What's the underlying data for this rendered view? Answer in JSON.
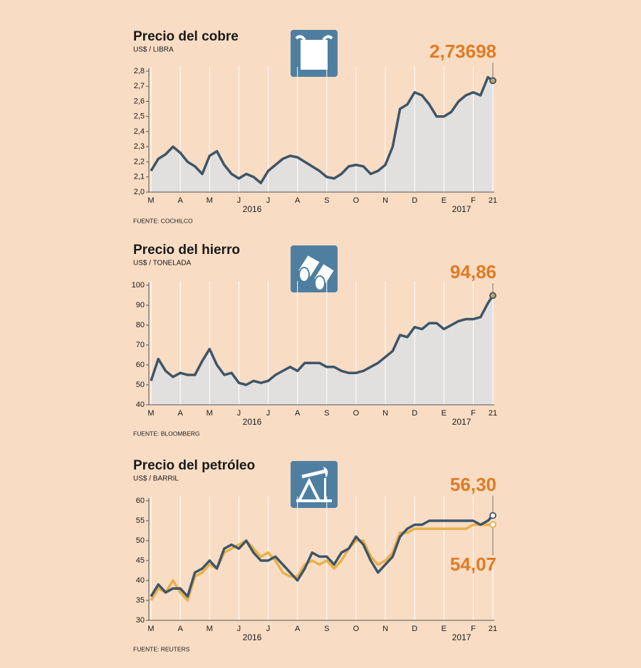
{
  "chart_data": [
    {
      "type": "line",
      "title": "Precio del cobre",
      "subtitle": "US$ / LIBRA",
      "source": "FUENTE: COCHILCO",
      "area": true,
      "grid": true,
      "x": [
        0,
        0.25,
        0.5,
        0.75,
        1,
        1.25,
        1.5,
        1.75,
        2,
        2.25,
        2.5,
        2.75,
        3,
        3.25,
        3.5,
        3.75,
        4,
        4.25,
        4.5,
        4.75,
        5,
        5.25,
        5.5,
        5.75,
        6,
        6.25,
        6.5,
        6.75,
        7,
        7.25,
        7.5,
        7.75,
        8,
        8.25,
        8.5,
        8.75,
        9,
        9.25,
        9.5,
        9.75,
        10,
        10.25,
        10.5,
        10.75,
        11,
        11.25,
        11.5,
        11.67
      ],
      "xlim": [
        0,
        11.67
      ],
      "xticks": [
        {
          "value": 0,
          "label": "M"
        },
        {
          "value": 1,
          "label": "A"
        },
        {
          "value": 2,
          "label": "M"
        },
        {
          "value": 3,
          "label": "J"
        },
        {
          "value": 4,
          "label": "J"
        },
        {
          "value": 5,
          "label": "A"
        },
        {
          "value": 6,
          "label": "S"
        },
        {
          "value": 7,
          "label": "O"
        },
        {
          "value": 8,
          "label": "N"
        },
        {
          "value": 9,
          "label": "D"
        },
        {
          "value": 10,
          "label": "E"
        },
        {
          "value": 11,
          "label": "F"
        },
        {
          "value": 11.67,
          "label": "21"
        }
      ],
      "x_group_labels": [
        "2016",
        "2017"
      ],
      "ylim": [
        2.0,
        2.8
      ],
      "yticks": [
        {
          "value": 2.0,
          "label": "2,0"
        },
        {
          "value": 2.1,
          "label": "2,1"
        },
        {
          "value": 2.2,
          "label": "2,2"
        },
        {
          "value": 2.3,
          "label": "2,3"
        },
        {
          "value": 2.4,
          "label": "2,4"
        },
        {
          "value": 2.5,
          "label": "2,5"
        },
        {
          "value": 2.6,
          "label": "2,6"
        },
        {
          "value": 2.7,
          "label": "2,7"
        },
        {
          "value": 2.8,
          "label": "2,8"
        }
      ],
      "series": [
        {
          "color": "#3e5566",
          "marker_color": "#b8a56e",
          "label_color": "#e07b24",
          "values": [
            2.14,
            2.22,
            2.25,
            2.3,
            2.26,
            2.2,
            2.17,
            2.12,
            2.24,
            2.27,
            2.18,
            2.12,
            2.09,
            2.12,
            2.1,
            2.06,
            2.14,
            2.18,
            2.22,
            2.24,
            2.23,
            2.2,
            2.17,
            2.14,
            2.1,
            2.09,
            2.12,
            2.17,
            2.18,
            2.17,
            2.12,
            2.14,
            2.18,
            2.3,
            2.55,
            2.58,
            2.66,
            2.64,
            2.58,
            2.5,
            2.5,
            2.53,
            2.6,
            2.64,
            2.66,
            2.64,
            2.76,
            2.73698
          ],
          "value_labels": [
            null,
            null,
            null,
            null,
            null,
            null,
            null,
            null,
            null,
            null,
            null,
            null,
            null,
            null,
            null,
            null,
            null,
            null,
            null,
            null,
            null,
            null,
            null,
            null,
            null,
            null,
            null,
            null,
            null,
            null,
            null,
            null,
            null,
            null,
            null,
            null,
            null,
            null,
            null,
            null,
            null,
            null,
            null,
            null,
            null,
            null,
            null,
            "2,73698"
          ]
        }
      ]
    },
    {
      "type": "line",
      "title": "Precio del hierro",
      "subtitle": "US$ / TONELADA",
      "source": "FUENTE: BLOOMBERG",
      "area": true,
      "grid": true,
      "x": [
        0,
        0.25,
        0.5,
        0.75,
        1,
        1.25,
        1.5,
        1.75,
        2,
        2.25,
        2.5,
        2.75,
        3,
        3.25,
        3.5,
        3.75,
        4,
        4.25,
        4.5,
        4.75,
        5,
        5.25,
        5.5,
        5.75,
        6,
        6.25,
        6.5,
        6.75,
        7,
        7.25,
        7.5,
        7.75,
        8,
        8.25,
        8.5,
        8.75,
        9,
        9.25,
        9.5,
        9.75,
        10,
        10.25,
        10.5,
        10.75,
        11,
        11.25,
        11.5,
        11.67
      ],
      "xlim": [
        0,
        11.67
      ],
      "xticks": [
        {
          "value": 0,
          "label": "M"
        },
        {
          "value": 1,
          "label": "A"
        },
        {
          "value": 2,
          "label": "M"
        },
        {
          "value": 3,
          "label": "J"
        },
        {
          "value": 4,
          "label": "J"
        },
        {
          "value": 5,
          "label": "A"
        },
        {
          "value": 6,
          "label": "S"
        },
        {
          "value": 7,
          "label": "O"
        },
        {
          "value": 8,
          "label": "N"
        },
        {
          "value": 9,
          "label": "D"
        },
        {
          "value": 10,
          "label": "E"
        },
        {
          "value": 11,
          "label": "F"
        },
        {
          "value": 11.67,
          "label": "21"
        }
      ],
      "x_group_labels": [
        "2016",
        "2017"
      ],
      "ylim": [
        40,
        100
      ],
      "yticks": [
        40,
        50,
        60,
        70,
        80,
        90,
        100
      ],
      "series": [
        {
          "color": "#3e5566",
          "marker_color": "#b8a56e",
          "label_color": "#e07b24",
          "values": [
            52,
            63,
            57,
            54,
            56,
            55,
            55,
            62,
            68,
            60,
            55,
            56,
            51,
            50,
            52,
            51,
            52,
            55,
            57,
            59,
            57,
            61,
            61,
            61,
            59,
            59,
            57,
            56,
            56,
            57,
            59,
            61,
            64,
            67,
            75,
            74,
            79,
            78,
            81,
            81,
            78,
            80,
            82,
            83,
            83,
            84,
            91,
            94.86
          ],
          "value_labels": [
            null,
            null,
            null,
            null,
            null,
            null,
            null,
            null,
            null,
            null,
            null,
            null,
            null,
            null,
            null,
            null,
            null,
            null,
            null,
            null,
            null,
            null,
            null,
            null,
            null,
            null,
            null,
            null,
            null,
            null,
            null,
            null,
            null,
            null,
            null,
            null,
            null,
            null,
            null,
            null,
            null,
            null,
            null,
            null,
            null,
            null,
            null,
            "94,86"
          ]
        }
      ]
    },
    {
      "type": "line",
      "title": "Precio del petróleo",
      "subtitle": "US$ / BARRIL",
      "source": "FUENTE: REUTERS",
      "area": false,
      "grid": true,
      "x": [
        0,
        0.25,
        0.5,
        0.75,
        1,
        1.25,
        1.5,
        1.75,
        2,
        2.25,
        2.5,
        2.75,
        3,
        3.25,
        3.5,
        3.75,
        4,
        4.25,
        4.5,
        4.75,
        5,
        5.25,
        5.5,
        5.75,
        6,
        6.25,
        6.5,
        6.75,
        7,
        7.25,
        7.5,
        7.75,
        8,
        8.25,
        8.5,
        8.75,
        9,
        9.25,
        9.5,
        9.75,
        10,
        10.25,
        10.5,
        10.75,
        11,
        11.25,
        11.5,
        11.67
      ],
      "xlim": [
        0,
        11.67
      ],
      "xticks": [
        {
          "value": 0,
          "label": "M"
        },
        {
          "value": 1,
          "label": "A"
        },
        {
          "value": 2,
          "label": "M"
        },
        {
          "value": 3,
          "label": "J"
        },
        {
          "value": 4,
          "label": "J"
        },
        {
          "value": 5,
          "label": "A"
        },
        {
          "value": 6,
          "label": "S"
        },
        {
          "value": 7,
          "label": "O"
        },
        {
          "value": 8,
          "label": "N"
        },
        {
          "value": 9,
          "label": "D"
        },
        {
          "value": 10,
          "label": "E"
        },
        {
          "value": 11,
          "label": "F"
        },
        {
          "value": 11.67,
          "label": "21"
        }
      ],
      "x_group_labels": [
        "2016",
        "2017"
      ],
      "ylim": [
        30,
        60
      ],
      "yticks": [
        30,
        35,
        40,
        45,
        50,
        55,
        60
      ],
      "series": [
        {
          "color": "#e8b04a",
          "marker_color": "#ffffff",
          "label_color": "#e07b24",
          "values": [
            35,
            38,
            37,
            40,
            37,
            35,
            41,
            42,
            44,
            43,
            47,
            48,
            49,
            50,
            48,
            46,
            47,
            45,
            42,
            41,
            41,
            44,
            45,
            44,
            45,
            43,
            45,
            48,
            50,
            50,
            46,
            44,
            45,
            47,
            52,
            52,
            53,
            53,
            53,
            53,
            53,
            53,
            53,
            53,
            54,
            54,
            54,
            54.07
          ],
          "value_labels": [
            null,
            null,
            null,
            null,
            null,
            null,
            null,
            null,
            null,
            null,
            null,
            null,
            null,
            null,
            null,
            null,
            null,
            null,
            null,
            null,
            null,
            null,
            null,
            null,
            null,
            null,
            null,
            null,
            null,
            null,
            null,
            null,
            null,
            null,
            null,
            null,
            null,
            null,
            null,
            null,
            null,
            null,
            null,
            null,
            null,
            null,
            null,
            "54,07"
          ]
        },
        {
          "color": "#3e5566",
          "marker_color": "#ffffff",
          "label_color": "#e07b24",
          "values": [
            36,
            39,
            37,
            38,
            38,
            36,
            42,
            43,
            45,
            43,
            48,
            49,
            48,
            50,
            47,
            45,
            45,
            46,
            44,
            42,
            40,
            43,
            47,
            46,
            46,
            44,
            47,
            48,
            51,
            49,
            45,
            42,
            44,
            46,
            51,
            53,
            54,
            54,
            55,
            55,
            55,
            55,
            55,
            55,
            55,
            54,
            55,
            56.3
          ],
          "value_labels": [
            null,
            null,
            null,
            null,
            null,
            null,
            null,
            null,
            null,
            null,
            null,
            null,
            null,
            null,
            null,
            null,
            null,
            null,
            null,
            null,
            null,
            null,
            null,
            null,
            null,
            null,
            null,
            null,
            null,
            null,
            null,
            null,
            null,
            null,
            null,
            null,
            null,
            null,
            null,
            null,
            null,
            null,
            null,
            null,
            null,
            null,
            null,
            "56,30"
          ]
        }
      ]
    }
  ]
}
